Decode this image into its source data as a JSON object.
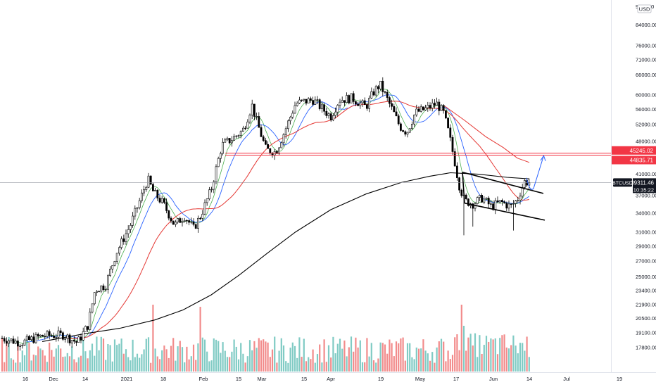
{
  "chart_data": {
    "type": "candlestick",
    "symbol": "BTCUSD",
    "currency_badge": "USD",
    "top_cut_label": "9",
    "top_cut_label2": "00",
    "y_scale": "log",
    "ylim": [
      16500,
      92000
    ],
    "y_ticks": [
      84000,
      76000,
      71000,
      66000,
      60000,
      56000,
      52000,
      48000,
      41000,
      37000,
      34000,
      31000,
      29000,
      27000,
      25000,
      23400,
      21900,
      20500,
      19100,
      17800
    ],
    "x_ticks": [
      "16",
      "Dec",
      "14",
      "2021",
      "18",
      "Feb",
      "15",
      "Mar",
      "15",
      "Apr",
      "19",
      "May",
      "17",
      "Jun",
      "14",
      "Jul",
      "19"
    ],
    "price_labels": {
      "resistance_1": "45245.02",
      "resistance_2": "44835.71",
      "last_price": "39311.46",
      "countdown": "10:35:22"
    },
    "grid": false,
    "colors": {
      "up": "#26a69a",
      "down": "#ef5350",
      "candle_outline": "#000000",
      "ma_green": "#4caf50",
      "ma_blue": "#2962ff",
      "ma_red": "#e53935",
      "ma_black": "#000000",
      "resistance": "#f23645",
      "arrow": "#2962ff",
      "vol_up": "#80cbc4",
      "vol_down": "#f28b8b",
      "last_price_bg": "#131722",
      "tag_red": "#f23645"
    }
  }
}
